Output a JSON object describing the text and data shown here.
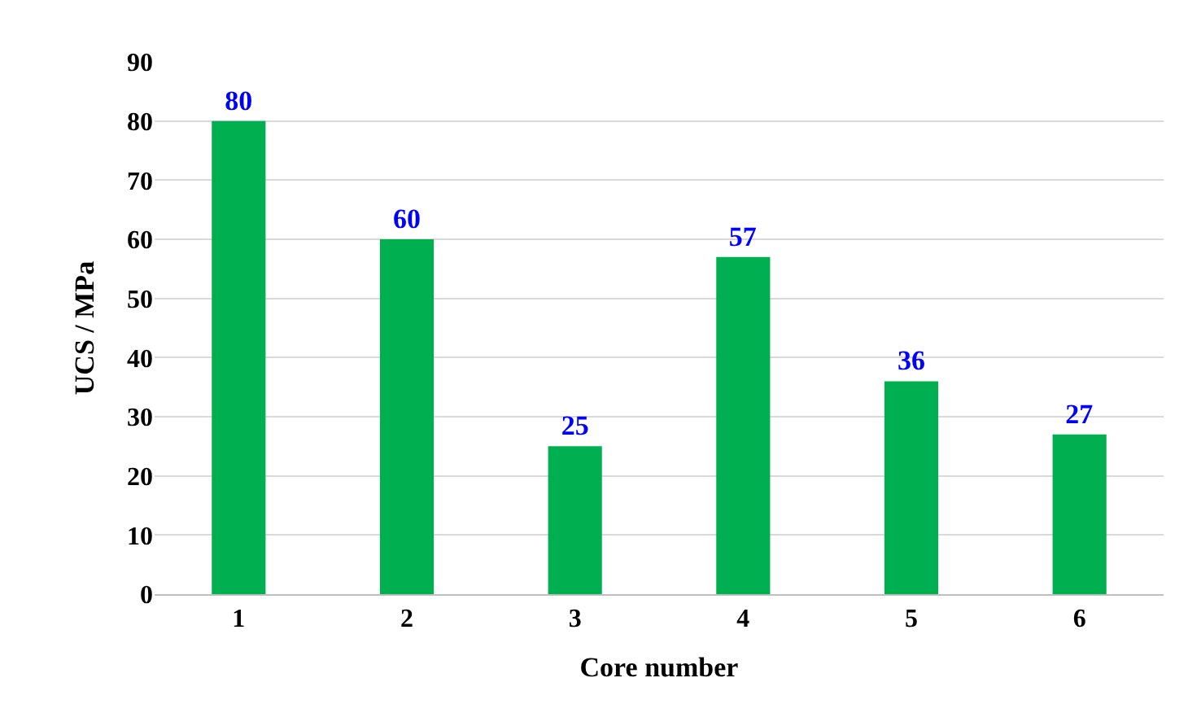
{
  "chart_data": {
    "type": "bar",
    "xlabel": "Core number",
    "ylabel": "UCS / MPa",
    "categories": [
      "1",
      "2",
      "3",
      "4",
      "5",
      "6"
    ],
    "values": [
      80,
      60,
      25,
      57,
      36,
      27
    ],
    "color": "#00b050",
    "ylim": [
      0,
      90
    ],
    "yticks": [
      0,
      10,
      20,
      30,
      40,
      50,
      60,
      70,
      80,
      90
    ],
    "grid": "y",
    "data_labels": true
  }
}
